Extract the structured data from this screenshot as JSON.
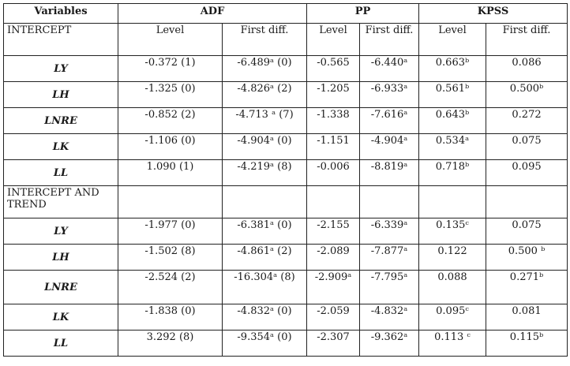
{
  "header": {
    "variables": "Variables",
    "adf": "ADF",
    "pp": "PP",
    "kpss": "KPSS"
  },
  "subheader": {
    "section": "INTERCEPT",
    "adf_level": "Level",
    "adf_first": "First diff.",
    "pp_level": "Level",
    "pp_first": "First diff.",
    "kpss_level": "Level",
    "kpss_first": "First diff."
  },
  "intercept_rows": [
    {
      "var": "LY",
      "adf_level": "-0.372 (1)",
      "adf_first": "-6.489ᵃ (0)",
      "pp_level": "-0.565",
      "pp_first": "-6.440ᵃ",
      "kpss_level": "0.663ᵇ",
      "kpss_first": "0.086"
    },
    {
      "var": "LH",
      "adf_level": "-1.325 (0)",
      "adf_first": "-4.826ᵃ (2)",
      "pp_level": "-1.205",
      "pp_first": "-6.933ᵃ",
      "kpss_level": "0.561ᵇ",
      "kpss_first": "0.500ᵇ"
    },
    {
      "var": "LNRE",
      "adf_level": "-0.852 (2)",
      "adf_first": "-4.713 ᵃ (7)",
      "pp_level": "-1.338",
      "pp_first": "-7.616ᵃ",
      "kpss_level": "0.643ᵇ",
      "kpss_first": "0.272"
    },
    {
      "var": "LK",
      "adf_level": "-1.106 (0)",
      "adf_first": "-4.904ᵃ (0)",
      "pp_level": "-1.151",
      "pp_first": "-4.904ᵃ",
      "kpss_level": "0.534ᵃ",
      "kpss_first": "0.075"
    },
    {
      "var": "LL",
      "adf_level": "1.090 (1)",
      "adf_first": "-4.219ᵃ (8)",
      "pp_level": "-0.006",
      "pp_first": "-8.819ᵃ",
      "kpss_level": "0.718ᵇ",
      "kpss_first": "0.095"
    }
  ],
  "trend_section": "INTERCEPT AND TREND",
  "trend_rows": [
    {
      "var": "LY",
      "adf_level": "-1.977 (0)",
      "adf_first": "-6.381ᵃ (0)",
      "pp_level": "-2.155",
      "pp_first": "-6.339ᵃ",
      "kpss_level": "0.135ᶜ",
      "kpss_first": "0.075"
    },
    {
      "var": "LH",
      "adf_level": "-1.502 (8)",
      "adf_first": "-4.861ᵃ (2)",
      "pp_level": "-2.089",
      "pp_first": "-7.877ᵃ",
      "kpss_level": "0.122",
      "kpss_first": "0.500 ᵇ"
    },
    {
      "var": "LNRE",
      "adf_level": "-2.524 (2)",
      "adf_first": "-16.304ᵃ (8)",
      "pp_level": "-2.909ᵃ",
      "pp_first": "-7.795ᵃ",
      "kpss_level": "0.088",
      "kpss_first": "0.271ᵇ"
    },
    {
      "var": "LK",
      "adf_level": "-1.838 (0)",
      "adf_first": "-4.832ᵃ (0)",
      "pp_level": "-2.059",
      "pp_first": "-4.832ᵃ",
      "kpss_level": "0.095ᶜ",
      "kpss_first": "0.081"
    },
    {
      "var": "LL",
      "adf_level": "3.292 (8)",
      "adf_first": "-9.354ᵃ (0)",
      "pp_level": "-2.307",
      "pp_first": "-9.362ᵃ",
      "kpss_level": "0.113 ᶜ",
      "kpss_first": "0.115ᵇ"
    }
  ]
}
